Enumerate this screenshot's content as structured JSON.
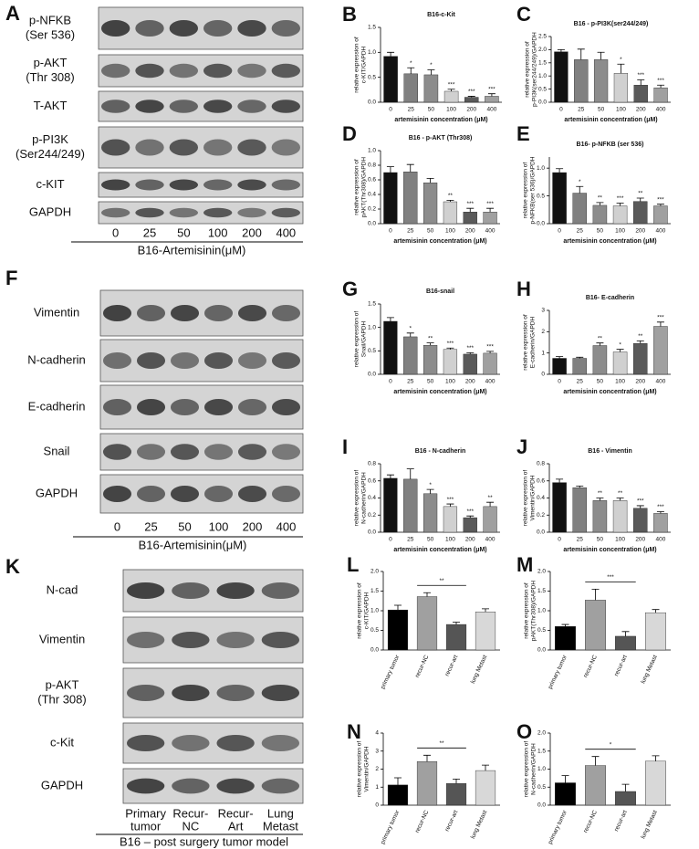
{
  "blots": [
    {
      "label": "A",
      "rows": [
        [
          "p-NFKB",
          "(Ser 536)"
        ],
        [
          "p-AKT",
          "(Thr 308)"
        ],
        [
          "T-AKT"
        ],
        [
          "p-PI3K",
          "(Ser244/249)"
        ],
        [
          "c-KIT"
        ],
        [
          "GAPDH"
        ]
      ],
      "lanes": [
        [
          "0"
        ],
        [
          "25"
        ],
        [
          "50"
        ],
        [
          "100"
        ],
        [
          "200"
        ],
        [
          "400"
        ]
      ],
      "caption": "B16-Artemisinin(μM)"
    },
    {
      "label": "F",
      "rows": [
        [
          "Vimentin"
        ],
        [
          "N-cadherin"
        ],
        [
          "E-cadherin"
        ],
        [
          "Snail"
        ],
        [
          "GAPDH"
        ]
      ],
      "lanes": [
        [
          "0"
        ],
        [
          "25"
        ],
        [
          "50"
        ],
        [
          "100"
        ],
        [
          "200"
        ],
        [
          "400"
        ]
      ],
      "caption": "B16-Artemisinin(μM)"
    },
    {
      "label": "K",
      "rows": [
        [
          "N-cad"
        ],
        [
          "Vimentin"
        ],
        [
          "p-AKT",
          "(Thr 308)"
        ],
        [
          "c-Kit"
        ],
        [
          "GAPDH"
        ]
      ],
      "lanes": [
        [
          "Primary",
          "tumor"
        ],
        [
          "Recur-",
          "NC"
        ],
        [
          "Recur-",
          "Art"
        ],
        [
          "Lung",
          "Metast"
        ]
      ],
      "caption": "B16 – post surgery tumor model"
    }
  ],
  "chart_data": [
    {
      "type": "bar",
      "label": "B",
      "title": "B16-c-Kit",
      "ylabel": [
        "relative expression of",
        "c-KIT/GAPDH"
      ],
      "xlabel": "artemisinin concentration (μM)",
      "categories": [
        "0",
        "25",
        "50",
        "100",
        "200",
        "400"
      ],
      "values": [
        0.92,
        0.57,
        0.55,
        0.22,
        0.1,
        0.12
      ],
      "errors": [
        0.08,
        0.12,
        0.1,
        0.04,
        0.02,
        0.05
      ],
      "annotations": [
        null,
        "*",
        "*",
        "***",
        "***",
        "***"
      ],
      "colors": [
        "#111111",
        "#808080",
        "#8c8c8c",
        "#d0d0d0",
        "#5a5a5a",
        "#a0a0a0"
      ],
      "ylim": [
        0,
        1.5
      ],
      "yticks": [
        {
          "value": 0,
          "label": "0.0"
        },
        0.5,
        {
          "value": 1,
          "label": "1.0"
        },
        1.5
      ]
    },
    {
      "type": "bar",
      "label": "C",
      "title": "B16 - p-PI3K(ser244/249)",
      "ylabel": [
        "relative expression of",
        "p-PI3K(ser244/249)/GAPDH"
      ],
      "xlabel": "artemisinin concentration (μM)",
      "categories": [
        "0",
        "25",
        "50",
        "100",
        "200",
        "400"
      ],
      "values": [
        1.92,
        1.62,
        1.62,
        1.1,
        0.65,
        0.55
      ],
      "errors": [
        0.08,
        0.4,
        0.28,
        0.35,
        0.2,
        0.1
      ],
      "annotations": [
        null,
        null,
        null,
        "*",
        "***",
        "***"
      ],
      "colors": [
        "#111111",
        "#808080",
        "#8c8c8c",
        "#d0d0d0",
        "#5a5a5a",
        "#a0a0a0"
      ],
      "ylim": [
        0,
        2.5
      ],
      "yticks": [
        {
          "value": 0,
          "label": "0.0"
        },
        0.5,
        {
          "value": 1,
          "label": "1.0"
        },
        1.5,
        {
          "value": 2,
          "label": "2.0"
        },
        2.5
      ]
    },
    {
      "type": "bar",
      "label": "D",
      "title": "B16 - p-AKT (Thr308)",
      "ylabel": [
        "relative expression of",
        "pAKT(Thr308)/GAPDH"
      ],
      "xlabel": "artemisinin concentration (μM)",
      "categories": [
        "0",
        "25",
        "50",
        "100",
        "200",
        "400"
      ],
      "values": [
        0.7,
        0.71,
        0.56,
        0.3,
        0.16,
        0.16
      ],
      "errors": [
        0.08,
        0.1,
        0.06,
        0.02,
        0.05,
        0.05
      ],
      "annotations": [
        null,
        null,
        null,
        "**",
        "***",
        "***"
      ],
      "colors": [
        "#111111",
        "#808080",
        "#8c8c8c",
        "#d0d0d0",
        "#5a5a5a",
        "#a0a0a0"
      ],
      "ylim": [
        0,
        1
      ],
      "yticks": [
        {
          "value": 0,
          "label": "0.0"
        },
        0.2,
        0.4,
        0.6,
        0.8,
        {
          "value": 1,
          "label": "1.0"
        }
      ]
    },
    {
      "type": "bar",
      "label": "E",
      "title": "B16- p-NFKB (ser 536)",
      "ylabel": [
        "relative expression of",
        "p-NFKB(ser 536)/GAPDH"
      ],
      "xlabel": "artemisinin concentration (μM)",
      "categories": [
        "0",
        "25",
        "50",
        "100",
        "200",
        "400"
      ],
      "values": [
        0.92,
        0.55,
        0.33,
        0.32,
        0.4,
        0.32
      ],
      "errors": [
        0.07,
        0.12,
        0.05,
        0.05,
        0.06,
        0.03
      ],
      "annotations": [
        null,
        "*",
        "**",
        "***",
        "**",
        "***"
      ],
      "colors": [
        "#111111",
        "#808080",
        "#8c8c8c",
        "#d0d0d0",
        "#5a5a5a",
        "#a0a0a0"
      ],
      "ylim": [
        0,
        1.2
      ],
      "yticks": [
        {
          "value": 0,
          "label": "0.0"
        },
        0.5,
        {
          "value": 1,
          "label": "1.0"
        }
      ]
    },
    {
      "type": "bar",
      "label": "G",
      "title": "B16-snail",
      "ylabel": [
        "relative expression of",
        "Snail/GAPDH"
      ],
      "xlabel": "artemisinin concentration (μM)",
      "categories": [
        "0",
        "25",
        "50",
        "100",
        "200",
        "400"
      ],
      "values": [
        1.13,
        0.8,
        0.62,
        0.53,
        0.43,
        0.45
      ],
      "errors": [
        0.08,
        0.08,
        0.05,
        0.03,
        0.03,
        0.04
      ],
      "annotations": [
        null,
        "*",
        "**",
        "***",
        "***",
        "***"
      ],
      "colors": [
        "#111111",
        "#808080",
        "#8c8c8c",
        "#d0d0d0",
        "#5a5a5a",
        "#a0a0a0"
      ],
      "ylim": [
        0,
        1.5
      ],
      "yticks": [
        {
          "value": 0,
          "label": "0.0"
        },
        0.5,
        {
          "value": 1,
          "label": "1.0"
        },
        1.5
      ]
    },
    {
      "type": "bar",
      "label": "H",
      "title": "B16- E-cadherin",
      "ylabel": [
        "relative expression of",
        "E-cadherin/GAPDH"
      ],
      "xlabel": "artemisinin concentration (μM)",
      "categories": [
        "0",
        "25",
        "50",
        "100",
        "200",
        "400"
      ],
      "values": [
        0.75,
        0.75,
        1.35,
        1.05,
        1.45,
        2.25
      ],
      "errors": [
        0.08,
        0.05,
        0.12,
        0.12,
        0.12,
        0.2
      ],
      "annotations": [
        null,
        null,
        "**",
        "*",
        "**",
        "***"
      ],
      "colors": [
        "#111111",
        "#808080",
        "#8c8c8c",
        "#d0d0d0",
        "#5a5a5a",
        "#a0a0a0"
      ],
      "ylim": [
        0,
        3
      ],
      "yticks": [
        0,
        1,
        2,
        3
      ]
    },
    {
      "type": "bar",
      "label": "I",
      "title": "B16 - N-cadherin",
      "ylabel": [
        "relative expression of",
        "N-cadherin/GAPDH"
      ],
      "xlabel": "artemisinin concentration (μM)",
      "categories": [
        "0",
        "25",
        "50",
        "100",
        "200",
        "400"
      ],
      "values": [
        0.63,
        0.62,
        0.45,
        0.3,
        0.17,
        0.3
      ],
      "errors": [
        0.04,
        0.12,
        0.05,
        0.03,
        0.02,
        0.05
      ],
      "annotations": [
        null,
        null,
        "*",
        "***",
        "***",
        "**"
      ],
      "colors": [
        "#111111",
        "#808080",
        "#8c8c8c",
        "#d0d0d0",
        "#5a5a5a",
        "#a0a0a0"
      ],
      "ylim": [
        0,
        0.8
      ],
      "yticks": [
        {
          "value": 0,
          "label": "0.0"
        },
        0.2,
        0.4,
        0.6,
        0.8
      ]
    },
    {
      "type": "bar",
      "label": "J",
      "title": "B16 - Vimentin",
      "ylabel": [
        "relative expression of",
        "Vimentin/GAPDH"
      ],
      "xlabel": "artemisinin concentration (μM)",
      "categories": [
        "0",
        "25",
        "50",
        "100",
        "200",
        "400"
      ],
      "values": [
        0.58,
        0.52,
        0.37,
        0.37,
        0.28,
        0.22
      ],
      "errors": [
        0.04,
        0.02,
        0.03,
        0.03,
        0.03,
        0.02
      ],
      "annotations": [
        null,
        null,
        "**",
        "**",
        "***",
        "***"
      ],
      "colors": [
        "#111111",
        "#808080",
        "#8c8c8c",
        "#d0d0d0",
        "#5a5a5a",
        "#a0a0a0"
      ],
      "ylim": [
        0,
        0.8
      ],
      "yticks": [
        {
          "value": 0,
          "label": "0.0"
        },
        0.2,
        0.4,
        0.6,
        0.8
      ]
    },
    {
      "type": "bar",
      "label": "L",
      "ylabel": [
        "relative expression of",
        "c-KIT/GAPDH"
      ],
      "categories": [
        "primary tumor",
        "recur-NC",
        "recur-art",
        "lung Metast"
      ],
      "values": [
        1.02,
        1.36,
        0.65,
        0.97
      ],
      "errors": [
        0.12,
        0.1,
        0.06,
        0.08
      ],
      "significance": [
        {
          "between": [
            "recur-NC",
            "recur-art"
          ],
          "label": "**"
        }
      ],
      "colors": [
        "#000000",
        "#a0a0a0",
        "#555555",
        "#d8d8d8"
      ],
      "ylim": [
        0,
        2
      ],
      "yticks": [
        {
          "value": 0,
          "label": "0.0"
        },
        0.5,
        {
          "value": 1,
          "label": "1.0"
        },
        1.5,
        {
          "value": 2,
          "label": "2.0"
        }
      ]
    },
    {
      "type": "bar",
      "label": "M",
      "ylabel": [
        "relative expression of",
        "pAKT(Thr308)/GAPDH"
      ],
      "categories": [
        "primary tumor",
        "recur-NC",
        "recur-art",
        "lung Metast"
      ],
      "values": [
        0.6,
        1.27,
        0.35,
        0.95
      ],
      "errors": [
        0.05,
        0.28,
        0.12,
        0.08
      ],
      "significance": [
        {
          "between": [
            "recur-NC",
            "recur-art"
          ],
          "label": "***"
        }
      ],
      "colors": [
        "#000000",
        "#a0a0a0",
        "#555555",
        "#d8d8d8"
      ],
      "ylim": [
        0,
        2
      ],
      "yticks": [
        {
          "value": 0,
          "label": "0.0"
        },
        0.5,
        {
          "value": 1,
          "label": "1.0"
        },
        1.5,
        {
          "value": 2,
          "label": "2.0"
        }
      ]
    },
    {
      "type": "bar",
      "label": "N",
      "ylabel": [
        "relative expression of",
        "Vimentin/GAPDH"
      ],
      "categories": [
        "primary tumor",
        "recur-NC",
        "recur-art",
        "lung Metast"
      ],
      "values": [
        1.12,
        2.42,
        1.2,
        1.92
      ],
      "errors": [
        0.4,
        0.35,
        0.25,
        0.3
      ],
      "significance": [
        {
          "between": [
            "recur-NC",
            "recur-art"
          ],
          "label": "**"
        }
      ],
      "colors": [
        "#000000",
        "#a0a0a0",
        "#555555",
        "#d8d8d8"
      ],
      "ylim": [
        0,
        4
      ],
      "yticks": [
        0,
        1,
        2,
        3,
        4
      ]
    },
    {
      "type": "bar",
      "label": "O",
      "ylabel": [
        "relative expression of",
        "N-cadherin/GAPDH"
      ],
      "categories": [
        "primary tumor",
        "recur-NC",
        "recur-art",
        "lung Metast"
      ],
      "values": [
        0.62,
        1.1,
        0.38,
        1.22
      ],
      "errors": [
        0.2,
        0.25,
        0.2,
        0.15
      ],
      "significance": [
        {
          "between": [
            "recur-NC",
            "recur-art"
          ],
          "label": "*"
        }
      ],
      "colors": [
        "#000000",
        "#a0a0a0",
        "#555555",
        "#d8d8d8"
      ],
      "ylim": [
        0,
        2
      ],
      "yticks": [
        {
          "value": 0,
          "label": "0.0"
        },
        0.5,
        {
          "value": 1,
          "label": "1.0"
        },
        1.5,
        {
          "value": 2,
          "label": "2.0"
        }
      ]
    }
  ]
}
